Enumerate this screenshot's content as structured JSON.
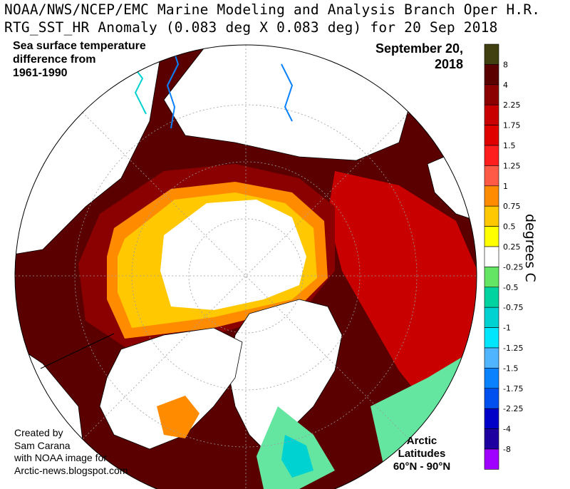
{
  "header": {
    "line1": "NOAA/NWS/NCEP/EMC Marine Modeling and Analysis Branch Oper H.R.",
    "line2": "RTG_SST_HR Anomaly (0.083 deg X 0.083 deg) for 20 Sep 2018"
  },
  "annotations": {
    "caption_lines": [
      "Sea surface temperature",
      "difference from",
      "1961-1990"
    ],
    "date_lines": [
      "September 20,",
      "2018"
    ],
    "credit_lines": [
      "Created by",
      "Sam Carana",
      "with NOAA image for",
      "Arctic-news.blogspot.com"
    ],
    "latitude_lines": [
      "Arctic",
      "Latitudes",
      "60°N - 90°N"
    ]
  },
  "legend": {
    "unit": "degrees C",
    "bins": [
      {
        "color": "#404010",
        "label": "8"
      },
      {
        "color": "#5a0000",
        "label": "4"
      },
      {
        "color": "#8b0000",
        "label": "2.25"
      },
      {
        "color": "#c80000",
        "label": "1.75"
      },
      {
        "color": "#e00000",
        "label": "1.5"
      },
      {
        "color": "#ff1e1e",
        "label": "1.25"
      },
      {
        "color": "#ff5a46",
        "label": "1"
      },
      {
        "color": "#ff8c00",
        "label": "0.75"
      },
      {
        "color": "#ffc800",
        "label": "0.5"
      },
      {
        "color": "#ffff00",
        "label": "0.25"
      },
      {
        "color": "#ffffff",
        "label": "-0.25"
      },
      {
        "color": "#64e664",
        "label": "-0.5"
      },
      {
        "color": "#00d2a0",
        "label": "-0.75"
      },
      {
        "color": "#00d2d2",
        "label": "-1"
      },
      {
        "color": "#00e6ff",
        "label": "-1.25"
      },
      {
        "color": "#50b4ff",
        "label": "-1.5"
      },
      {
        "color": "#0a82ff",
        "label": "-1.75"
      },
      {
        "color": "#0050f0",
        "label": "-2.25"
      },
      {
        "color": "#0000c8",
        "label": "-4"
      },
      {
        "color": "#1e00a0",
        "label": "-8"
      },
      {
        "color": "#a000ff",
        "label": ""
      }
    ]
  },
  "colors": {
    "land": "#ffffff",
    "coast": "#000000",
    "very_warm": "#5a0000",
    "warm": "#8b0000",
    "mid": "#c80000",
    "orange": "#ff8c00",
    "yellow": "#ffc800",
    "ice": "#ffffff",
    "cold_teal": "#64e6a0",
    "cold_cyan": "#00d2d2",
    "cold_blue": "#0a82ff",
    "grid": "#9a9a9a"
  }
}
